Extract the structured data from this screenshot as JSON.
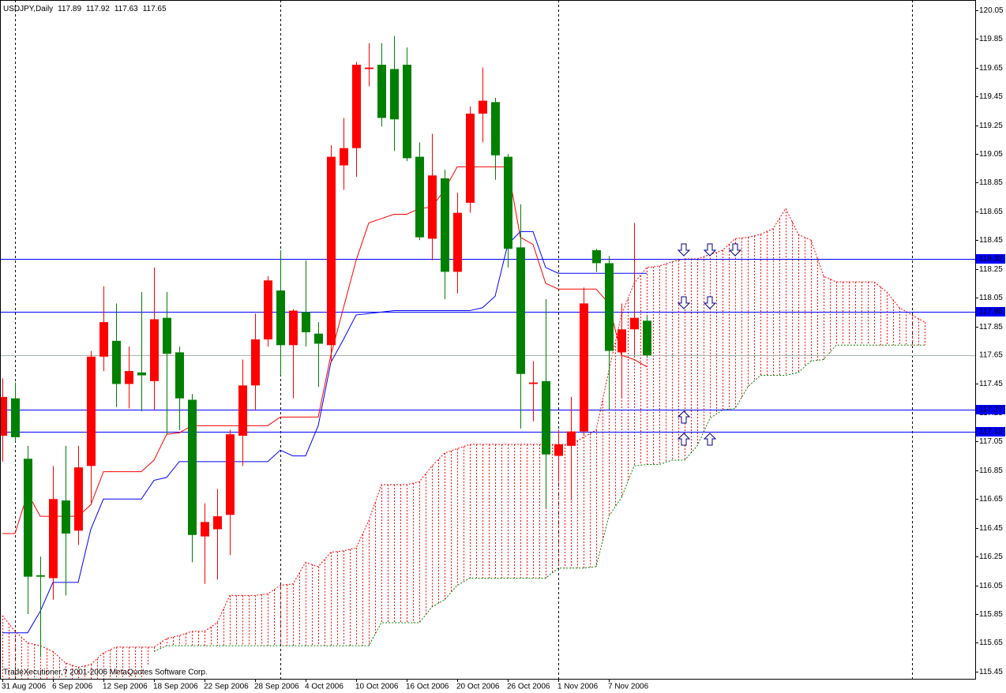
{
  "chart_data": {
    "type": "candlestick",
    "title": "USDJPY,Daily",
    "watermark": "TradeXecutioner,? 2001-2006 MetaQuotes Software Corp.",
    "up_color": "#ff0000",
    "down_color": "#008000",
    "categories": [
      "31 Aug 2006",
      null,
      null,
      null,
      "6 Sep 2006",
      null,
      null,
      null,
      "12 Sep 2006",
      null,
      null,
      null,
      "18 Sep 2006",
      null,
      null,
      null,
      "22 Sep 2006",
      null,
      null,
      null,
      "28 Sep 2006",
      null,
      null,
      null,
      "4 Oct 2006",
      null,
      null,
      null,
      "10 Oct 2006",
      null,
      null,
      null,
      "16 Oct 2006",
      null,
      null,
      null,
      "20 Oct 2006",
      null,
      null,
      null,
      "26 Oct 2006",
      null,
      null,
      null,
      "1 Nov 2006",
      null,
      null,
      null,
      "7 Nov 2006",
      null,
      null,
      null
    ],
    "open": [
      117.09,
      117.35,
      116.93,
      116.12,
      116.1,
      116.64,
      116.43,
      116.88,
      117.64,
      117.75,
      117.45,
      117.53,
      117.47,
      117.91,
      117.67,
      117.34,
      116.39,
      116.44,
      116.54,
      117.09,
      117.44,
      117.76,
      118.1,
      117.72,
      117.95,
      117.8,
      117.72,
      118.97,
      119.09,
      119.64,
      119.67,
      119.64,
      119.67,
      119.03,
      118.46,
      118.88,
      118.23,
      118.71,
      119.33,
      119.41,
      119.03,
      118.4,
      117.45,
      117.47,
      116.95,
      117.02,
      117.12,
      118.38,
      118.29,
      117.67,
      117.83,
      117.89
    ],
    "high": [
      117.49,
      117.46,
      117.02,
      116.25,
      116.88,
      117.02,
      117.02,
      117.68,
      118.13,
      118.01,
      117.71,
      118.09,
      118.26,
      118.09,
      117.71,
      117.38,
      116.62,
      116.72,
      117.13,
      117.62,
      117.94,
      118.2,
      118.38,
      117.97,
      118.31,
      117.88,
      119.11,
      119.3,
      119.69,
      119.82,
      119.82,
      119.87,
      119.79,
      119.13,
      119.19,
      118.94,
      118.78,
      119.38,
      119.65,
      119.44,
      119.05,
      118.7,
      117.61,
      118.04,
      117.13,
      117.36,
      118.12,
      118.39,
      118.34,
      118.01,
      118.57,
      117.92
    ],
    "low": [
      116.91,
      117.05,
      115.85,
      115.55,
      115.95,
      115.98,
      116.33,
      116.61,
      117.54,
      117.29,
      117.28,
      117.26,
      117.27,
      117.1,
      117.13,
      116.21,
      116.06,
      116.09,
      116.26,
      116.88,
      117.27,
      117.71,
      117.51,
      117.35,
      117.71,
      117.43,
      117.6,
      118.8,
      118.89,
      119.52,
      119.24,
      119.07,
      119.0,
      118.45,
      118.31,
      118.04,
      118.08,
      118.64,
      119.13,
      118.87,
      118.26,
      117.14,
      117.19,
      116.59,
      116.77,
      116.64,
      117.09,
      118.23,
      117.27,
      117.35,
      117.65,
      117.63
    ],
    "close": [
      117.36,
      117.08,
      116.11,
      116.11,
      116.65,
      116.41,
      116.87,
      117.64,
      117.88,
      117.45,
      117.54,
      117.51,
      117.9,
      117.66,
      117.35,
      116.4,
      116.49,
      116.53,
      117.1,
      117.44,
      117.76,
      118.17,
      117.72,
      117.96,
      117.81,
      117.73,
      119.03,
      119.09,
      119.67,
      119.65,
      119.3,
      119.29,
      119.02,
      118.47,
      118.9,
      118.23,
      118.64,
      119.33,
      119.42,
      119.04,
      118.39,
      117.52,
      117.46,
      116.96,
      117.03,
      117.12,
      118.01,
      118.29,
      117.68,
      117.83,
      117.91,
      117.65
    ],
    "lines": [
      {
        "color": "#ff0000",
        "values": [
          116.41,
          116.41,
          116.69,
          116.53,
          116.53,
          116.53,
          116.53,
          116.61,
          116.84,
          116.84,
          116.84,
          116.84,
          116.92,
          117.1,
          117.11,
          117.16,
          117.16,
          117.16,
          117.16,
          117.16,
          117.16,
          117.16,
          117.22,
          117.22,
          117.22,
          117.22,
          117.65,
          117.98,
          118.31,
          118.57,
          118.6,
          118.63,
          118.63,
          118.67,
          118.68,
          118.8,
          118.96,
          118.96,
          118.96,
          118.96,
          118.96,
          118.47,
          118.42,
          118.15,
          118.11,
          118.11,
          118.11,
          118.11,
          118.01,
          117.65,
          117.62,
          117.57
        ]
      },
      {
        "color": "#0000ff",
        "values": [
          115.72,
          115.72,
          115.72,
          115.87,
          116.07,
          116.07,
          116.07,
          116.44,
          116.65,
          116.65,
          116.65,
          116.65,
          116.78,
          116.8,
          116.91,
          116.91,
          116.91,
          116.91,
          116.91,
          116.91,
          116.91,
          116.91,
          116.99,
          116.95,
          116.95,
          117.16,
          117.6,
          117.76,
          117.93,
          117.94,
          117.95,
          117.96,
          117.96,
          117.96,
          117.96,
          117.96,
          117.96,
          117.96,
          117.98,
          118.06,
          118.42,
          118.51,
          118.51,
          118.26,
          118.22,
          118.22,
          118.22,
          118.22,
          118.22,
          118.22,
          118.22,
          118.22
        ]
      }
    ],
    "cloud": {
      "span_a": {
        "color": "#ff0000",
        "values": [
          115.84,
          115.73,
          115.65,
          115.63,
          115.59,
          115.51,
          115.48,
          115.5,
          115.58,
          115.62,
          115.62,
          115.62,
          115.62,
          115.68,
          115.7,
          115.73,
          115.73,
          115.79,
          115.98,
          115.98,
          115.98,
          115.99,
          116.05,
          116.06,
          116.21,
          116.18,
          116.28,
          116.29,
          116.31,
          116.5,
          116.75,
          116.75,
          116.75,
          116.77,
          116.88,
          116.97,
          117.0,
          117.03,
          117.03,
          117.03,
          117.03,
          117.03,
          117.03,
          117.03,
          117.03,
          117.03,
          117.08,
          117.13,
          117.54,
          117.93,
          118.15,
          118.26,
          118.27,
          118.3,
          118.32,
          118.32,
          118.35,
          118.38,
          118.46,
          118.47,
          118.49,
          118.53,
          118.67,
          118.49,
          118.45,
          118.2,
          118.16,
          118.16,
          118.16,
          118.16,
          118.09,
          117.98,
          117.93,
          117.88
        ]
      },
      "span_b": {
        "color": "#008000",
        "values": [
          null,
          null,
          null,
          null,
          null,
          null,
          null,
          null,
          null,
          null,
          null,
          null,
          115.59,
          115.63,
          115.63,
          115.63,
          115.63,
          115.63,
          115.63,
          115.63,
          115.63,
          115.63,
          115.63,
          115.63,
          115.63,
          115.63,
          115.63,
          115.63,
          115.63,
          115.63,
          115.79,
          115.79,
          115.79,
          115.79,
          115.9,
          115.95,
          116.05,
          116.1,
          116.1,
          116.1,
          116.1,
          116.1,
          116.1,
          116.1,
          116.17,
          116.17,
          116.17,
          116.18,
          116.53,
          116.66,
          116.88,
          116.89,
          116.89,
          116.92,
          116.92,
          117.02,
          117.21,
          117.27,
          117.28,
          117.43,
          117.51,
          117.51,
          117.51,
          117.53,
          117.61,
          117.62,
          117.72,
          117.72,
          117.72,
          117.72,
          117.72,
          117.72,
          117.72,
          117.72
        ]
      }
    },
    "levels": [
      {
        "value": 118.32,
        "color": "#0000ff"
      },
      {
        "value": 117.95,
        "color": "#0000ff"
      },
      {
        "value": 117.27,
        "color": "#0000ff"
      },
      {
        "value": 117.12,
        "color": "#0000ff"
      }
    ],
    "bid": {
      "value": 117.65,
      "color": "#a8b4a8"
    },
    "ylim": [
      115.4,
      120.12
    ],
    "yticks": [
      120.05,
      119.85,
      119.65,
      119.45,
      119.25,
      119.05,
      118.85,
      118.65,
      118.45,
      118.25,
      118.05,
      117.85,
      117.65,
      117.45,
      117.25,
      117.05,
      116.85,
      116.65,
      116.45,
      116.25,
      116.05,
      115.85,
      115.65,
      115.45
    ]
  }
}
